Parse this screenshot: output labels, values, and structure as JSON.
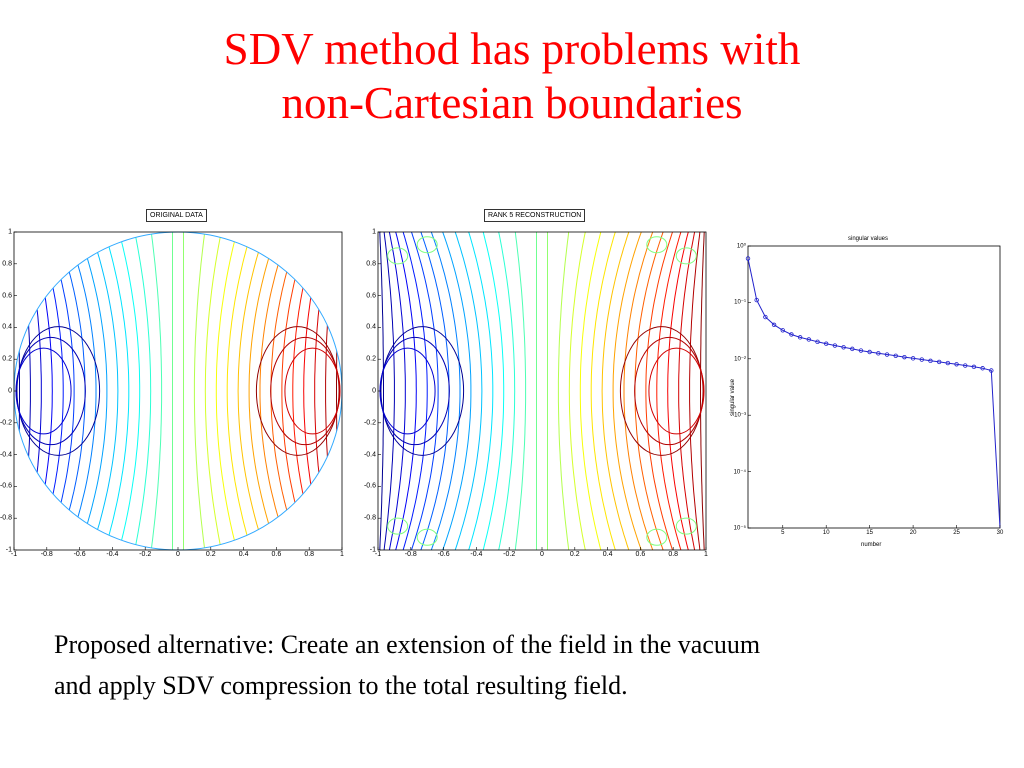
{
  "slide": {
    "title_line1": "SDV method has problems with",
    "title_line2": "non-Cartesian boundaries",
    "body_line1": "Proposed alternative: Create an extension of the field in the vacuum",
    "body_line2": "and apply SDV compression to the total resulting field.",
    "title_color": "#ff0000"
  },
  "chart_data": [
    {
      "type": "contour",
      "label": "ORIGINAL DATA",
      "xlim": [
        -1,
        1
      ],
      "ylim": [
        -1,
        1
      ],
      "x_ticks": [
        "-1",
        "-0.8",
        "-0.6",
        "-0.4",
        "-0.2",
        "0",
        "0.2",
        "0.4",
        "0.6",
        "0.8",
        "1"
      ],
      "y_ticks": [
        "1",
        "0.8",
        "0.6",
        "0.4",
        "0.2",
        "0",
        "-0.2",
        "-0.4",
        "-0.6",
        "-0.8",
        "-1"
      ],
      "domain": "unit disk",
      "colormap": "jet"
    },
    {
      "type": "contour",
      "label": "RANK 5 RECONSTRUCTION",
      "xlim": [
        -1,
        1
      ],
      "ylim": [
        -1,
        1
      ],
      "x_ticks": [
        "-1",
        "-0.8",
        "-0.6",
        "-0.4",
        "-0.2",
        "0",
        "0.2",
        "0.4",
        "0.6",
        "0.8",
        "1"
      ],
      "y_ticks": [
        "1",
        "0.8",
        "0.6",
        "0.4",
        "0.2",
        "0",
        "-0.2",
        "-0.4",
        "-0.6",
        "-0.8",
        "-1"
      ],
      "domain": "square",
      "colormap": "jet"
    },
    {
      "type": "line",
      "title": "singular values",
      "xlabel": "number",
      "ylabel": "singular value",
      "yscale": "log",
      "xlim": [
        1,
        30
      ],
      "ylim_exp": [
        -5,
        0
      ],
      "x_ticks": [
        "5",
        "10",
        "15",
        "20",
        "25",
        "30"
      ],
      "y_ticks": [
        "10⁰",
        "10⁻¹",
        "10⁻²",
        "10⁻³",
        "10⁻⁴",
        "10⁻⁵"
      ],
      "x": [
        1,
        2,
        3,
        4,
        5,
        6,
        7,
        8,
        9,
        10,
        11,
        12,
        13,
        14,
        15,
        16,
        17,
        18,
        19,
        20,
        21,
        22,
        23,
        24,
        25,
        26,
        27,
        28,
        29,
        30
      ],
      "y": [
        0.6,
        0.11,
        0.055,
        0.04,
        0.032,
        0.027,
        0.024,
        0.022,
        0.02,
        0.0185,
        0.0172,
        0.016,
        0.015,
        0.014,
        0.0132,
        0.0125,
        0.0119,
        0.0113,
        0.0107,
        0.0102,
        0.0097,
        0.0092,
        0.0088,
        0.0084,
        0.008,
        0.0076,
        0.0072,
        0.0068,
        0.0062,
        1e-05
      ],
      "line_color": "#2222cc",
      "marker": "circle"
    }
  ]
}
